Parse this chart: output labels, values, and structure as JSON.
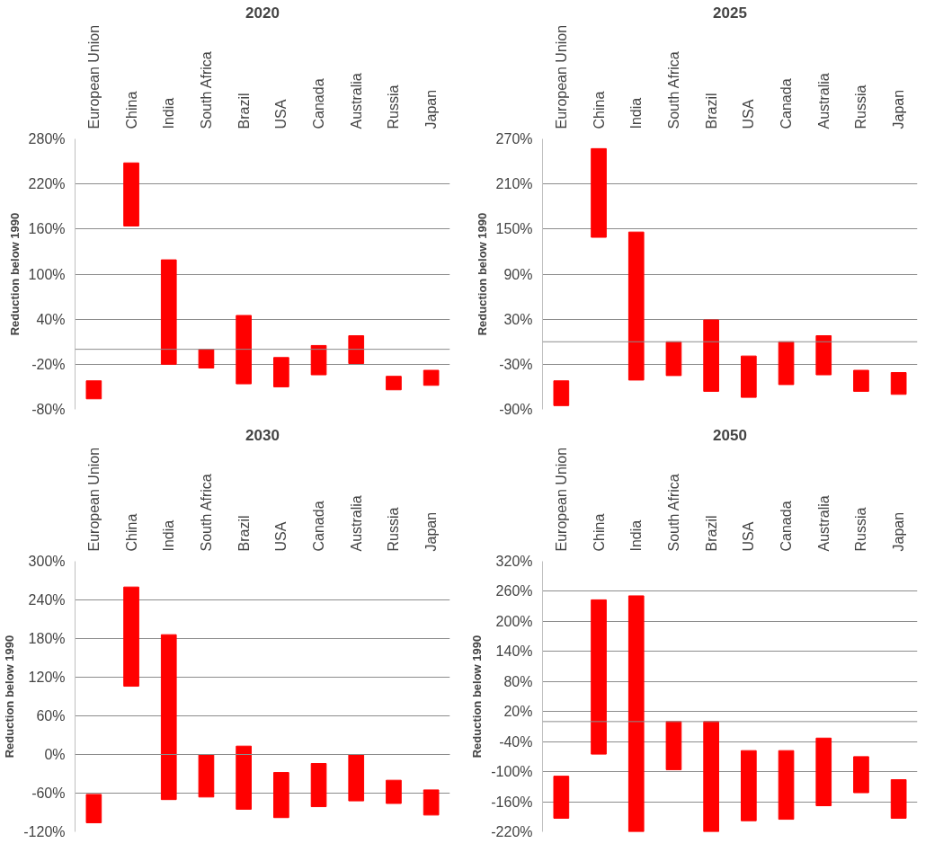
{
  "chart_data": [
    {
      "type": "bar",
      "title": "2020",
      "ylabel": "Reduction below 1990",
      "color": "#ff0000",
      "grid": "y",
      "categories": [
        "European Union",
        "China",
        "India",
        "South Africa",
        "Brazil",
        "USA",
        "Canada",
        "Australia",
        "Russia",
        "Japan"
      ],
      "base": [
        -66,
        164,
        -20,
        -25,
        -46,
        -50,
        -34,
        -19,
        -54,
        -48
      ],
      "values": [
        24,
        84,
        139,
        25,
        91,
        39,
        39,
        37,
        18,
        20
      ],
      "ylim": [
        -80,
        280
      ],
      "yticks": [
        {
          "value": -80,
          "label": "-80%"
        },
        {
          "value": -20,
          "label": "-20%"
        },
        {
          "value": 40,
          "label": "40%"
        },
        {
          "value": 100,
          "label": "100%"
        },
        {
          "value": 160,
          "label": "160%"
        },
        {
          "value": 220,
          "label": "220%"
        },
        {
          "value": 280,
          "label": "280%"
        }
      ]
    },
    {
      "type": "bar",
      "title": "2025",
      "ylabel": "Reduction below 1990",
      "color": "#ff0000",
      "grid": "y",
      "categories": [
        "European Union",
        "China",
        "India",
        "South Africa",
        "Brazil",
        "USA",
        "Canada",
        "Australia",
        "Russia",
        "Japan"
      ],
      "base": [
        -85,
        139,
        -51,
        -45,
        -66,
        -74,
        -57,
        -44,
        -66,
        -70
      ],
      "values": [
        33,
        118,
        197,
        45,
        95,
        55,
        57,
        52,
        28,
        29
      ],
      "ylim": [
        -90,
        270
      ],
      "yticks": [
        {
          "value": -90,
          "label": "-90%"
        },
        {
          "value": -30,
          "label": "-30%"
        },
        {
          "value": 30,
          "label": "30%"
        },
        {
          "value": 90,
          "label": "90%"
        },
        {
          "value": 150,
          "label": "150%"
        },
        {
          "value": 210,
          "label": "210%"
        },
        {
          "value": 270,
          "label": "270%"
        }
      ]
    },
    {
      "type": "bar",
      "title": "2030",
      "ylabel": "Reduction below 1990",
      "color": "#ff0000",
      "grid": "y",
      "categories": [
        "European Union",
        "China",
        "India",
        "South Africa",
        "Brazil",
        "USA",
        "Canada",
        "Australia",
        "Russia",
        "Japan"
      ],
      "base": [
        -106,
        106,
        -70,
        -66,
        -85,
        -98,
        -81,
        -72,
        -76,
        -94
      ],
      "values": [
        44,
        154,
        256,
        66,
        98,
        70,
        67,
        72,
        36,
        39
      ],
      "ylim": [
        -120,
        300
      ],
      "yticks": [
        {
          "value": -120,
          "label": "-120%"
        },
        {
          "value": -60,
          "label": "-60%"
        },
        {
          "value": 0,
          "label": "0%"
        },
        {
          "value": 60,
          "label": "60%"
        },
        {
          "value": 120,
          "label": "120%"
        },
        {
          "value": 180,
          "label": "180%"
        },
        {
          "value": 240,
          "label": "240%"
        },
        {
          "value": 300,
          "label": "300%"
        }
      ]
    },
    {
      "type": "bar",
      "title": "2050",
      "ylabel": "Reduction below 1990",
      "color": "#ff0000",
      "grid": "y",
      "categories": [
        "European Union",
        "China",
        "India",
        "South Africa",
        "Brazil",
        "USA",
        "Canada",
        "Australia",
        "Russia",
        "Japan"
      ],
      "base": [
        -193,
        -65,
        -220,
        -96,
        -220,
        -198,
        -195,
        -168,
        -142,
        -193
      ],
      "values": [
        84,
        308,
        471,
        96,
        220,
        140,
        137,
        135,
        72,
        77
      ],
      "ylim": [
        -220,
        320
      ],
      "yticks": [
        {
          "value": -220,
          "label": "-220%"
        },
        {
          "value": -160,
          "label": "-160%"
        },
        {
          "value": -100,
          "label": "-100%"
        },
        {
          "value": -40,
          "label": "-40%"
        },
        {
          "value": 20,
          "label": "20%"
        },
        {
          "value": 80,
          "label": "80%"
        },
        {
          "value": 140,
          "label": "140%"
        },
        {
          "value": 200,
          "label": "200%"
        },
        {
          "value": 260,
          "label": "260%"
        },
        {
          "value": 320,
          "label": "320%"
        }
      ]
    }
  ]
}
